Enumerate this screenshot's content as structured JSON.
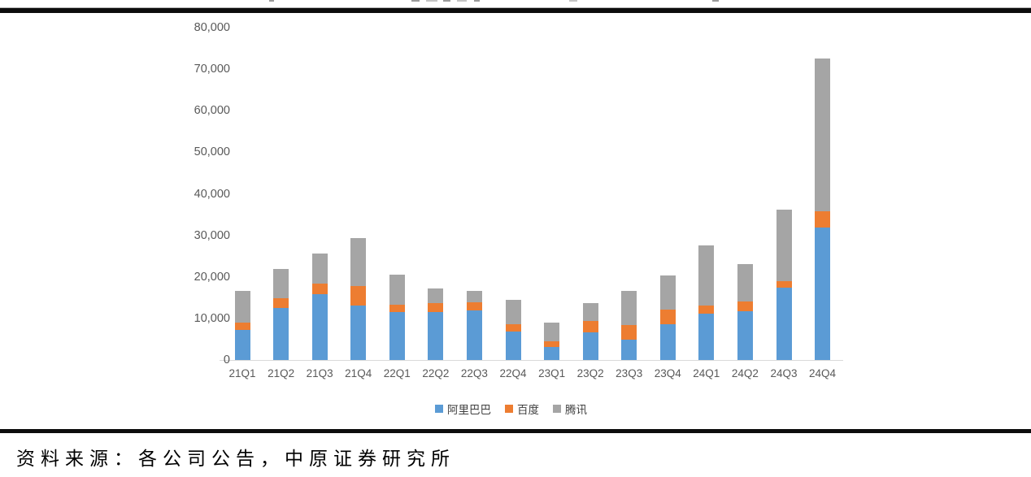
{
  "frame": {
    "source_text": "资料来源：各公司公告，中原证券研究所"
  },
  "colors": {
    "alibaba_blue": "#5B9BD5",
    "baidu_orange": "#ED7D31",
    "tencent_gray": "#A5A5A5",
    "axis_text_gray": "#595959",
    "axis_line_gray": "#D9D9D9",
    "rule_black": "#0d0d0d"
  },
  "chart_data": {
    "type": "bar",
    "stacked": true,
    "categories": [
      "21Q1",
      "21Q2",
      "21Q3",
      "21Q4",
      "22Q1",
      "22Q2",
      "22Q3",
      "22Q4",
      "23Q1",
      "23Q2",
      "23Q3",
      "23Q4",
      "24Q1",
      "24Q2",
      "24Q3",
      "24Q4"
    ],
    "series": [
      {
        "key": "alibaba",
        "name": "阿里巴巴",
        "color": "#5B9BD5",
        "values": [
          7300,
          12500,
          15800,
          13100,
          11500,
          11600,
          11950,
          6800,
          3200,
          6650,
          4850,
          8600,
          11150,
          11800,
          17400,
          31900
        ]
      },
      {
        "key": "baidu",
        "name": "百度",
        "color": "#ED7D31",
        "values": [
          1650,
          2300,
          2600,
          4700,
          1800,
          2150,
          1950,
          1750,
          1300,
          2750,
          3600,
          3600,
          1950,
          2300,
          1550,
          3900
        ]
      },
      {
        "key": "tencent",
        "name": "腾讯",
        "color": "#A5A5A5",
        "values": [
          7750,
          7100,
          7300,
          11600,
          7300,
          3400,
          2700,
          5850,
          4450,
          4250,
          8150,
          8100,
          14550,
          8950,
          17150,
          36850
        ]
      }
    ],
    "xlabel": "",
    "ylabel": "",
    "ylim": [
      0,
      80000
    ],
    "ytick_interval": 10000,
    "ytick_labels": [
      "0",
      "10,000",
      "20,000",
      "30,000",
      "40,000",
      "50,000",
      "60,000",
      "70,000",
      "80,000"
    ],
    "grid": false,
    "legend_position": "bottom"
  }
}
